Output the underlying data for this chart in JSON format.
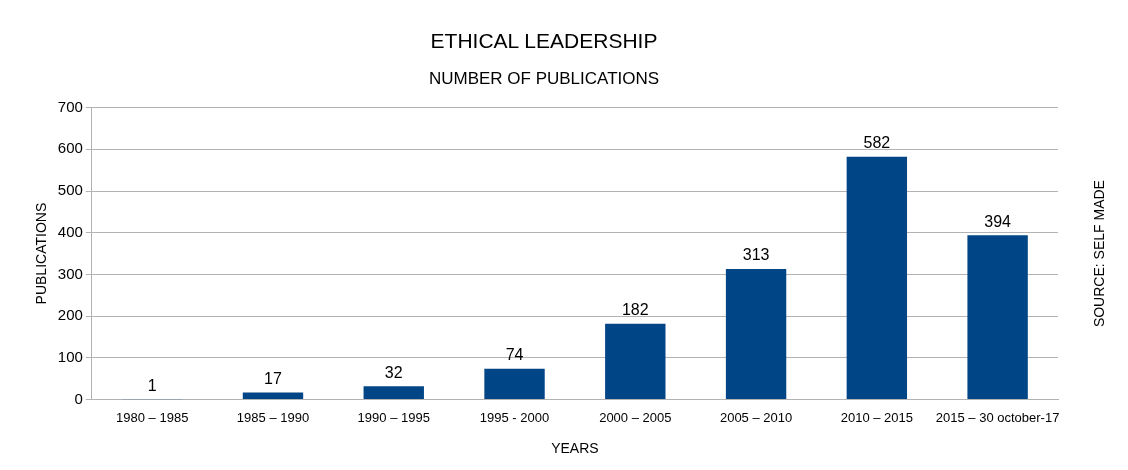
{
  "chart_data": {
    "type": "bar",
    "title": "ETHICAL LEADERSHIP",
    "subtitle": "NUMBER OF PUBLICATIONS",
    "xlabel": "YEARS",
    "ylabel": "PUBLICATIONS",
    "annotations": [
      "SOURCE: SELF MADE"
    ],
    "categories": [
      "1980 – 1985",
      "1985 – 1990",
      "1990 – 1995",
      "1995 - 2000",
      "2000 – 2005",
      "2005 – 2010",
      "2010 – 2015",
      "2015 – 30 october-17"
    ],
    "values": [
      1,
      17,
      32,
      74,
      182,
      313,
      582,
      394
    ],
    "color": "#004586",
    "ylim": [
      0,
      700
    ],
    "yticks": [
      0,
      100,
      200,
      300,
      400,
      500,
      600,
      700
    ],
    "grid": "y",
    "data_labels": true
  }
}
